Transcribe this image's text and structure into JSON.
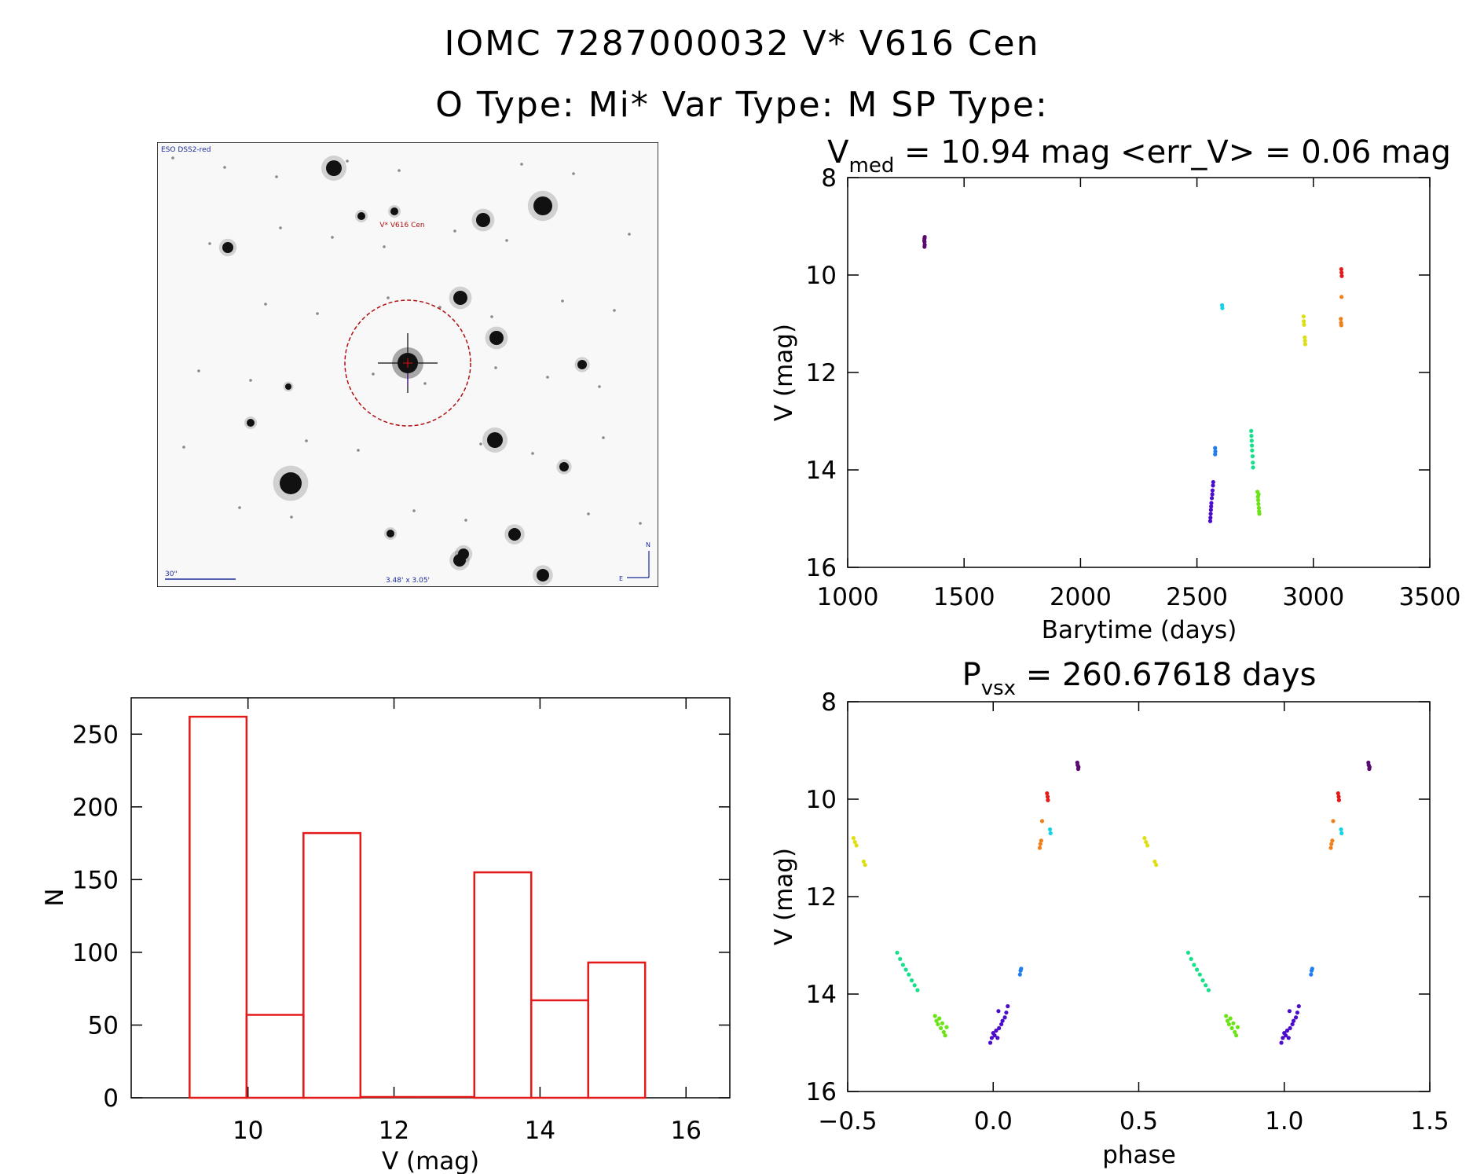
{
  "header": {
    "line1": "IOMC 7287000032   V* V616 Cen",
    "line2": "O Type: Mi*  Var Type: M  SP Type:"
  },
  "sky_image": {
    "survey_label": "ESO DSS2-red",
    "target_label": "V* V616 Cen",
    "scale_label": "30\"",
    "fov_label": "3.48' x 3.05'",
    "compass_n": "N",
    "compass_e": "E"
  },
  "chart_data": [
    {
      "type": "scatter",
      "title": "V_med = 10.94 mag <err_V> = 0.06 mag",
      "title_parts": {
        "v": "V",
        "v_sub": "med",
        "rest": " = 10.94 mag <err_V> = 0.06 mag"
      },
      "xlabel": "Barytime (days)",
      "ylabel": "V (mag)",
      "xlim": [
        1000,
        3500
      ],
      "ylim": [
        16,
        8
      ],
      "xticks": [
        1000,
        1500,
        2000,
        2500,
        3000,
        3500
      ],
      "yticks": [
        8,
        10,
        12,
        14,
        16
      ],
      "groups": [
        {
          "color": "#5a0a6e",
          "points": [
            [
              1330,
              9.25
            ],
            [
              1330,
              9.32
            ],
            [
              1331,
              9.38
            ],
            [
              1329,
              9.29
            ],
            [
              1330,
              9.42
            ],
            [
              1331,
              9.22
            ]
          ]
        },
        {
          "color": "#4b0ccc",
          "points": [
            [
              2557,
              15.05
            ],
            [
              2558,
              14.98
            ],
            [
              2559,
              14.9
            ],
            [
              2560,
              14.82
            ],
            [
              2561,
              14.75
            ],
            [
              2562,
              14.68
            ],
            [
              2564,
              14.58
            ],
            [
              2566,
              14.5
            ],
            [
              2567,
              14.42
            ],
            [
              2569,
              14.32
            ],
            [
              2570,
              14.25
            ]
          ]
        },
        {
          "color": "#1f7ef0",
          "points": [
            [
              2578,
              13.55
            ],
            [
              2579,
              13.62
            ],
            [
              2578,
              13.68
            ]
          ]
        },
        {
          "color": "#15d2e6",
          "points": [
            [
              2608,
              10.62
            ],
            [
              2609,
              10.68
            ]
          ]
        },
        {
          "color": "#16e08a",
          "points": [
            [
              2733,
              13.2
            ],
            [
              2734,
              13.3
            ],
            [
              2735,
              13.4
            ],
            [
              2736,
              13.5
            ],
            [
              2737,
              13.6
            ],
            [
              2739,
              13.72
            ],
            [
              2740,
              13.85
            ],
            [
              2741,
              13.95
            ]
          ]
        },
        {
          "color": "#6ae415",
          "points": [
            [
              2760,
              14.45
            ],
            [
              2762,
              14.55
            ],
            [
              2763,
              14.62
            ],
            [
              2764,
              14.7
            ],
            [
              2766,
              14.78
            ],
            [
              2767,
              14.85
            ],
            [
              2765,
              14.5
            ],
            [
              2768,
              14.9
            ]
          ]
        },
        {
          "color": "#dede14",
          "points": [
            [
              2958,
              10.85
            ],
            [
              2959,
              10.95
            ],
            [
              2960,
              11.02
            ],
            [
              2963,
              11.28
            ],
            [
              2964,
              11.35
            ],
            [
              2965,
              11.42
            ]
          ]
        },
        {
          "color": "#f2801a",
          "points": [
            [
              3118,
              10.9
            ],
            [
              3119,
              10.98
            ],
            [
              3120,
              11.03
            ],
            [
              3121,
              10.45
            ]
          ]
        },
        {
          "color": "#e41a1a",
          "points": [
            [
              3120,
              9.88
            ],
            [
              3121,
              9.95
            ],
            [
              3122,
              10.02
            ]
          ]
        }
      ]
    },
    {
      "type": "bar",
      "subtype": "histogram",
      "xlabel": "V (mag)",
      "ylabel": "N",
      "xlim": [
        8.4,
        16.6
      ],
      "ylim": [
        0,
        275
      ],
      "xticks": [
        10,
        12,
        14,
        16
      ],
      "yticks": [
        0,
        50,
        100,
        150,
        200,
        250
      ],
      "color": "#e41a1a",
      "bins": [
        {
          "x0": 9.2,
          "x1": 9.98,
          "value": 262
        },
        {
          "x0": 9.98,
          "x1": 10.76,
          "value": 57
        },
        {
          "x0": 10.76,
          "x1": 11.54,
          "value": 182
        },
        {
          "x0": 11.54,
          "x1": 12.32,
          "value": 0
        },
        {
          "x0": 12.32,
          "x1": 13.1,
          "value": 0
        },
        {
          "x0": 13.1,
          "x1": 13.88,
          "value": 155
        },
        {
          "x0": 13.88,
          "x1": 14.66,
          "value": 67
        },
        {
          "x0": 14.66,
          "x1": 15.44,
          "value": 93
        }
      ]
    },
    {
      "type": "scatter",
      "title": "P_vsx = 260.67618 days",
      "title_parts": {
        "v": "P",
        "v_sub": "vsx",
        "rest": " = 260.67618 days"
      },
      "xlabel": "phase",
      "ylabel": "V (mag)",
      "xlim": [
        -0.5,
        1.5
      ],
      "ylim": [
        16,
        8
      ],
      "xticks": [
        -0.5,
        0.0,
        0.5,
        1.0,
        1.5
      ],
      "xtick_labels": [
        "-0.5",
        "0.0",
        "0.5",
        "1.0",
        "1.5"
      ],
      "yticks": [
        8,
        10,
        12,
        14,
        16
      ],
      "repeat_offset": 1.0,
      "groups": [
        {
          "color": "#5a0a6e",
          "points": [
            [
              0.29,
              9.3
            ],
            [
              0.292,
              9.38
            ],
            [
              0.289,
              9.25
            ],
            [
              0.293,
              9.34
            ]
          ]
        },
        {
          "color": "#4b0ccc",
          "points": [
            [
              -0.01,
              15.0
            ],
            [
              -0.005,
              14.9
            ],
            [
              0.0,
              14.8
            ],
            [
              0.005,
              14.85
            ],
            [
              0.01,
              14.75
            ],
            [
              0.015,
              14.9
            ],
            [
              0.02,
              14.7
            ],
            [
              0.028,
              14.62
            ],
            [
              0.032,
              14.55
            ],
            [
              0.04,
              14.48
            ],
            [
              0.045,
              14.38
            ],
            [
              0.05,
              14.25
            ],
            [
              0.018,
              14.35
            ]
          ]
        },
        {
          "color": "#1f7ef0",
          "points": [
            [
              0.092,
              13.6
            ],
            [
              0.094,
              13.52
            ],
            [
              0.096,
              13.48
            ]
          ]
        },
        {
          "color": "#15d2e6",
          "points": [
            [
              0.195,
              10.62
            ],
            [
              0.197,
              10.7
            ]
          ]
        },
        {
          "color": "#16e08a",
          "points": [
            [
              -0.33,
              13.15
            ],
            [
              -0.32,
              13.28
            ],
            [
              -0.31,
              13.4
            ],
            [
              -0.3,
              13.5
            ],
            [
              -0.29,
              13.6
            ],
            [
              -0.28,
              13.72
            ],
            [
              -0.27,
              13.82
            ],
            [
              -0.26,
              13.92
            ]
          ]
        },
        {
          "color": "#6ae415",
          "points": [
            [
              -0.2,
              14.45
            ],
            [
              -0.195,
              14.55
            ],
            [
              -0.19,
              14.62
            ],
            [
              -0.185,
              14.5
            ],
            [
              -0.18,
              14.7
            ],
            [
              -0.175,
              14.6
            ],
            [
              -0.17,
              14.78
            ],
            [
              -0.165,
              14.85
            ],
            [
              -0.16,
              14.68
            ]
          ]
        },
        {
          "color": "#dede14",
          "points": [
            [
              -0.48,
              10.8
            ],
            [
              -0.475,
              10.88
            ],
            [
              -0.47,
              10.95
            ],
            [
              -0.445,
              11.28
            ],
            [
              -0.44,
              11.35
            ]
          ]
        },
        {
          "color": "#f2801a",
          "points": [
            [
              0.16,
              11.0
            ],
            [
              0.162,
              10.92
            ],
            [
              0.165,
              10.85
            ],
            [
              0.168,
              10.45
            ]
          ]
        },
        {
          "color": "#e41a1a",
          "points": [
            [
              0.185,
              9.88
            ],
            [
              0.187,
              9.95
            ],
            [
              0.188,
              10.02
            ]
          ]
        }
      ]
    }
  ]
}
